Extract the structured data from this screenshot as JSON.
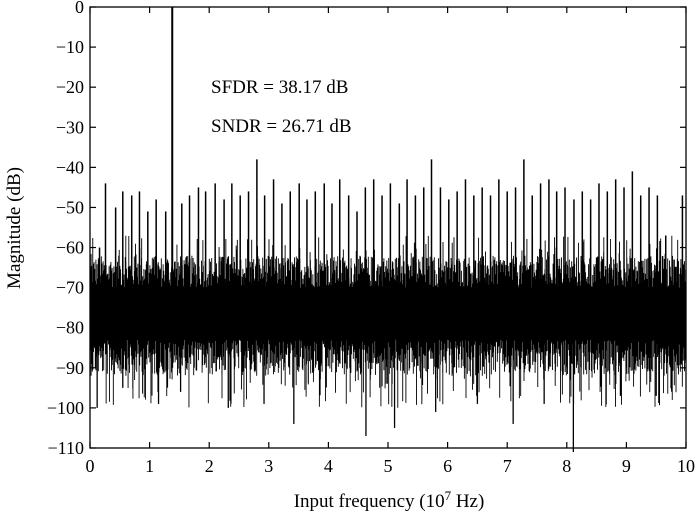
{
  "chart_data": {
    "type": "line",
    "title": "",
    "xlabel": {
      "prefix": "Input frequency (10",
      "exponent": "7",
      "suffix": " Hz)"
    },
    "ylabel": "Magnitude (dB)",
    "xlim": [
      0,
      10
    ],
    "ylim": [
      -110,
      0
    ],
    "xticks": [
      0,
      1,
      2,
      3,
      4,
      5,
      6,
      7,
      8,
      9,
      10
    ],
    "yticks": [
      0,
      -10,
      -20,
      -30,
      -40,
      -50,
      -60,
      -70,
      -80,
      -90,
      -100,
      -110
    ],
    "grid": false,
    "annotations": [
      "SFDR = 38.17 dB",
      "SNDR = 26.71 dB"
    ],
    "noise_floor": {
      "mean_db": -76,
      "upper_db": -67,
      "lower_db": -87
    },
    "fundamental": {
      "x": 1.38,
      "y": 0
    },
    "spurs": [
      {
        "x": 0.16,
        "y": -60
      },
      {
        "x": 0.26,
        "y": -44
      },
      {
        "x": 0.43,
        "y": -50
      },
      {
        "x": 0.55,
        "y": -46
      },
      {
        "x": 0.7,
        "y": -47
      },
      {
        "x": 0.83,
        "y": -46
      },
      {
        "x": 0.97,
        "y": -51
      },
      {
        "x": 1.11,
        "y": -48
      },
      {
        "x": 1.27,
        "y": -51
      },
      {
        "x": 1.54,
        "y": -49
      },
      {
        "x": 1.67,
        "y": -47
      },
      {
        "x": 1.82,
        "y": -45
      },
      {
        "x": 1.94,
        "y": -46
      },
      {
        "x": 2.1,
        "y": -44
      },
      {
        "x": 2.25,
        "y": -48
      },
      {
        "x": 2.38,
        "y": -44
      },
      {
        "x": 2.52,
        "y": -47
      },
      {
        "x": 2.66,
        "y": -46
      },
      {
        "x": 2.8,
        "y": -38
      },
      {
        "x": 2.93,
        "y": -47
      },
      {
        "x": 3.08,
        "y": -43
      },
      {
        "x": 3.22,
        "y": -49
      },
      {
        "x": 3.36,
        "y": -46
      },
      {
        "x": 3.51,
        "y": -44
      },
      {
        "x": 3.64,
        "y": -48
      },
      {
        "x": 3.78,
        "y": -46
      },
      {
        "x": 3.93,
        "y": -44
      },
      {
        "x": 4.06,
        "y": -49
      },
      {
        "x": 4.19,
        "y": -43
      },
      {
        "x": 4.34,
        "y": -47
      },
      {
        "x": 4.48,
        "y": -51
      },
      {
        "x": 4.62,
        "y": -45
      },
      {
        "x": 4.76,
        "y": -43
      },
      {
        "x": 4.9,
        "y": -47
      },
      {
        "x": 5.04,
        "y": -44
      },
      {
        "x": 5.19,
        "y": -49
      },
      {
        "x": 5.32,
        "y": -43
      },
      {
        "x": 5.46,
        "y": -47
      },
      {
        "x": 5.6,
        "y": -45
      },
      {
        "x": 5.73,
        "y": -38
      },
      {
        "x": 5.88,
        "y": -45
      },
      {
        "x": 6.02,
        "y": -48
      },
      {
        "x": 6.16,
        "y": -46
      },
      {
        "x": 6.3,
        "y": -43
      },
      {
        "x": 6.44,
        "y": -47
      },
      {
        "x": 6.58,
        "y": -45
      },
      {
        "x": 6.72,
        "y": -47
      },
      {
        "x": 6.86,
        "y": -43
      },
      {
        "x": 7.0,
        "y": -46
      },
      {
        "x": 7.14,
        "y": -45
      },
      {
        "x": 7.28,
        "y": -38
      },
      {
        "x": 7.42,
        "y": -47
      },
      {
        "x": 7.56,
        "y": -44
      },
      {
        "x": 7.7,
        "y": -43
      },
      {
        "x": 7.83,
        "y": -46
      },
      {
        "x": 7.97,
        "y": -45
      },
      {
        "x": 8.12,
        "y": -48
      },
      {
        "x": 8.26,
        "y": -46
      },
      {
        "x": 8.4,
        "y": -48
      },
      {
        "x": 8.54,
        "y": -44
      },
      {
        "x": 8.68,
        "y": -46
      },
      {
        "x": 8.82,
        "y": -43
      },
      {
        "x": 8.96,
        "y": -45
      },
      {
        "x": 9.1,
        "y": -41
      },
      {
        "x": 9.24,
        "y": -47
      },
      {
        "x": 9.38,
        "y": -45
      },
      {
        "x": 9.52,
        "y": -47
      },
      {
        "x": 9.66,
        "y": -57
      },
      {
        "x": 9.8,
        "y": -63
      },
      {
        "x": 9.94,
        "y": -47
      }
    ],
    "dips": [
      {
        "x": 0.12,
        "y": -100
      },
      {
        "x": 0.55,
        "y": -95
      },
      {
        "x": 1.15,
        "y": -99
      },
      {
        "x": 1.52,
        "y": -96
      },
      {
        "x": 2.32,
        "y": -100
      },
      {
        "x": 2.92,
        "y": -99
      },
      {
        "x": 3.42,
        "y": -104
      },
      {
        "x": 4.63,
        "y": -107
      },
      {
        "x": 5.11,
        "y": -105
      },
      {
        "x": 5.8,
        "y": -101
      },
      {
        "x": 6.5,
        "y": -99
      },
      {
        "x": 7.1,
        "y": -104
      },
      {
        "x": 7.62,
        "y": -99
      },
      {
        "x": 8.11,
        "y": -111
      },
      {
        "x": 8.9,
        "y": -97
      },
      {
        "x": 9.5,
        "y": -97
      }
    ]
  }
}
